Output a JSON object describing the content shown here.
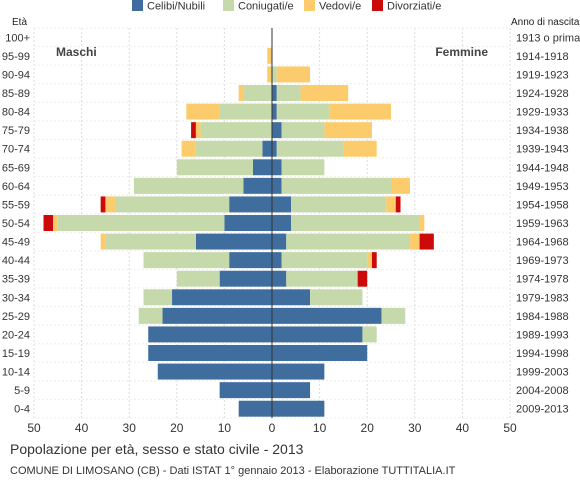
{
  "chart_data": {
    "type": "bar",
    "orientation": "horizontal-pyramid",
    "title": "Popolazione per età, sesso e stato civile - 2013",
    "subtitle": "COMUNE DI LIMOSANO (CB) - Dati ISTAT 1° gennaio 2013 - Elaborazione TUTTITALIA.IT",
    "left_axis_title": "Età",
    "right_axis_title": "Anno di nascita",
    "left_side_label": "Maschi",
    "right_side_label": "Femmine",
    "xlim": [
      -50,
      50
    ],
    "x_ticks": [
      -50,
      -40,
      -30,
      -20,
      -10,
      0,
      10,
      20,
      30,
      40,
      50
    ],
    "x_tick_labels": [
      "50",
      "40",
      "30",
      "20",
      "10",
      "0",
      "10",
      "20",
      "30",
      "40",
      "50"
    ],
    "series": [
      {
        "name": "Celibi/Nubili",
        "color": "#3f6e9e"
      },
      {
        "name": "Coniugati/e",
        "color": "#c5d9ab"
      },
      {
        "name": "Vedovi/e",
        "color": "#fccc6c"
      },
      {
        "name": "Divorziati/e",
        "color": "#cc0a0a"
      }
    ],
    "age_groups": [
      "100+",
      "95-99",
      "90-94",
      "85-89",
      "80-84",
      "75-79",
      "70-74",
      "65-69",
      "60-64",
      "55-59",
      "50-54",
      "45-49",
      "40-44",
      "35-39",
      "30-34",
      "25-29",
      "20-24",
      "15-19",
      "10-14",
      "5-9",
      "0-4"
    ],
    "birth_years": [
      "1913 o prima",
      "1914-1918",
      "1919-1923",
      "1924-1928",
      "1929-1933",
      "1934-1938",
      "1939-1943",
      "1944-1948",
      "1949-1953",
      "1954-1958",
      "1959-1963",
      "1964-1968",
      "1969-1973",
      "1974-1978",
      "1979-1983",
      "1984-1988",
      "1989-1993",
      "1994-1998",
      "1999-2003",
      "2004-2008",
      "2009-2013"
    ],
    "males": [
      [
        0,
        0,
        0,
        0
      ],
      [
        0,
        0,
        1,
        0
      ],
      [
        0,
        0,
        1,
        0
      ],
      [
        0,
        6,
        1,
        0
      ],
      [
        0,
        11,
        7,
        0
      ],
      [
        0,
        15,
        1,
        1
      ],
      [
        2,
        14,
        3,
        0
      ],
      [
        4,
        16,
        0,
        0
      ],
      [
        6,
        23,
        0,
        0
      ],
      [
        9,
        24,
        2,
        1
      ],
      [
        10,
        35,
        1,
        2
      ],
      [
        16,
        19,
        1,
        0
      ],
      [
        9,
        18,
        0,
        0
      ],
      [
        11,
        9,
        0,
        0
      ],
      [
        21,
        6,
        0,
        0
      ],
      [
        23,
        5,
        0,
        0
      ],
      [
        26,
        0,
        0,
        0
      ],
      [
        26,
        0,
        0,
        0
      ],
      [
        24,
        0,
        0,
        0
      ],
      [
        11,
        0,
        0,
        0
      ],
      [
        7,
        0,
        0,
        0
      ]
    ],
    "females": [
      [
        0,
        0,
        0,
        0
      ],
      [
        0,
        0,
        0,
        0
      ],
      [
        0,
        1,
        7,
        0
      ],
      [
        1,
        5,
        10,
        0
      ],
      [
        1,
        11,
        13,
        0
      ],
      [
        2,
        9,
        10,
        0
      ],
      [
        1,
        14,
        7,
        0
      ],
      [
        2,
        9,
        0,
        0
      ],
      [
        2,
        23,
        4,
        0
      ],
      [
        4,
        20,
        2,
        1
      ],
      [
        4,
        27,
        1,
        0
      ],
      [
        3,
        26,
        2,
        3
      ],
      [
        2,
        18,
        1,
        1
      ],
      [
        3,
        15,
        0,
        2
      ],
      [
        8,
        11,
        0,
        0
      ],
      [
        23,
        5,
        0,
        0
      ],
      [
        19,
        3,
        0,
        0
      ],
      [
        20,
        0,
        0,
        0
      ],
      [
        11,
        0,
        0,
        0
      ],
      [
        8,
        0,
        0,
        0
      ],
      [
        11,
        0,
        0,
        0
      ]
    ]
  }
}
